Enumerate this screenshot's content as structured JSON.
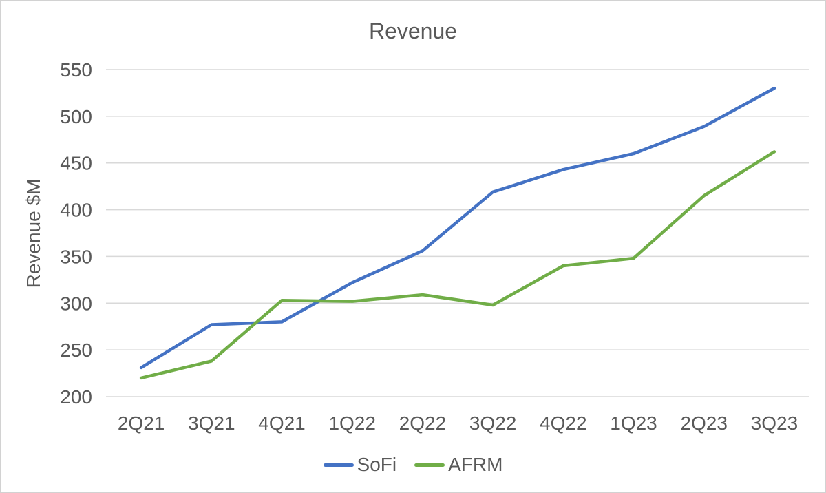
{
  "chart_data": {
    "type": "line",
    "title": "Revenue",
    "xlabel": "",
    "ylabel": "Revenue $M",
    "categories": [
      "2Q21",
      "3Q21",
      "4Q21",
      "1Q22",
      "2Q22",
      "3Q22",
      "4Q22",
      "1Q23",
      "2Q23",
      "3Q23"
    ],
    "series": [
      {
        "name": "SoFi",
        "color": "#4472C4",
        "values": [
          231,
          277,
          280,
          322,
          356,
          419,
          443,
          460,
          489,
          530
        ]
      },
      {
        "name": "AFRM",
        "color": "#70AD47",
        "values": [
          220,
          238,
          303,
          302,
          309,
          298,
          340,
          348,
          415,
          462
        ]
      }
    ],
    "ylim": [
      200,
      550
    ],
    "yticks": [
      200,
      250,
      300,
      350,
      400,
      450,
      500,
      550
    ],
    "grid": "horizontal-only",
    "legend_position": "bottom",
    "colors": {
      "text": "#595959",
      "gridline": "#D9D9D9",
      "background": "#FFFFFF",
      "frame_border": "#D2D2D2"
    }
  }
}
